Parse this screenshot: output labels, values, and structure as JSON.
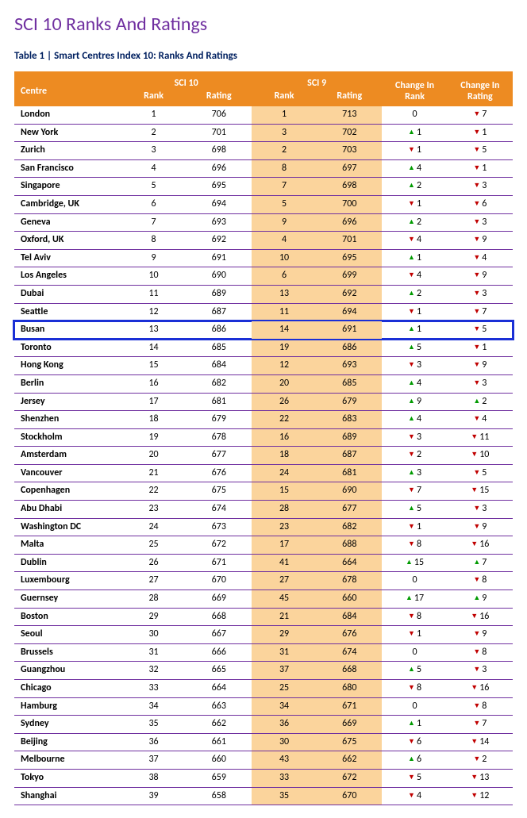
{
  "title": "SCI 10 Ranks And Ratings",
  "caption": "Table 1 | Smart Centres Index 10: Ranks And Ratings",
  "colors": {
    "heading": "#7030a0",
    "caption": "#002060",
    "header_bg": "#ed8b22",
    "header_fg": "#ffffff",
    "row_rule": "#7030a0",
    "highlight_bg": "#fbd49c",
    "box_outline": "#1a2fd6",
    "up": "#009a00",
    "down": "#c00000"
  },
  "headers": {
    "centre": "Centre",
    "sci10": "SCI 10",
    "sci9": "SCI 9",
    "rank": "Rank",
    "rating": "Rating",
    "change_rank": "Change In Rank",
    "change_rating": "Change In Rating"
  },
  "highlight_row_index": 12,
  "rows": [
    {
      "centre": "London",
      "r10": 1,
      "rt10": 706,
      "r9": 1,
      "rt9": 713,
      "d_rank": 0,
      "d_rating": -7
    },
    {
      "centre": "New York",
      "r10": 2,
      "rt10": 701,
      "r9": 3,
      "rt9": 702,
      "d_rank": 1,
      "d_rating": -1
    },
    {
      "centre": "Zurich",
      "r10": 3,
      "rt10": 698,
      "r9": 2,
      "rt9": 703,
      "d_rank": -1,
      "d_rating": -5
    },
    {
      "centre": "San Francisco",
      "r10": 4,
      "rt10": 696,
      "r9": 8,
      "rt9": 697,
      "d_rank": 4,
      "d_rating": -1
    },
    {
      "centre": "Singapore",
      "r10": 5,
      "rt10": 695,
      "r9": 7,
      "rt9": 698,
      "d_rank": 2,
      "d_rating": -3
    },
    {
      "centre": "Cambridge, UK",
      "r10": 6,
      "rt10": 694,
      "r9": 5,
      "rt9": 700,
      "d_rank": -1,
      "d_rating": -6
    },
    {
      "centre": "Geneva",
      "r10": 7,
      "rt10": 693,
      "r9": 9,
      "rt9": 696,
      "d_rank": 2,
      "d_rating": -3
    },
    {
      "centre": "Oxford, UK",
      "r10": 8,
      "rt10": 692,
      "r9": 4,
      "rt9": 701,
      "d_rank": -4,
      "d_rating": -9
    },
    {
      "centre": "Tel Aviv",
      "r10": 9,
      "rt10": 691,
      "r9": 10,
      "rt9": 695,
      "d_rank": 1,
      "d_rating": -4
    },
    {
      "centre": "Los Angeles",
      "r10": 10,
      "rt10": 690,
      "r9": 6,
      "rt9": 699,
      "d_rank": -4,
      "d_rating": -9
    },
    {
      "centre": "Dubai",
      "r10": 11,
      "rt10": 689,
      "r9": 13,
      "rt9": 692,
      "d_rank": 2,
      "d_rating": -3
    },
    {
      "centre": "Seattle",
      "r10": 12,
      "rt10": 687,
      "r9": 11,
      "rt9": 694,
      "d_rank": -1,
      "d_rating": -7
    },
    {
      "centre": "Busan",
      "r10": 13,
      "rt10": 686,
      "r9": 14,
      "rt9": 691,
      "d_rank": 1,
      "d_rating": -5
    },
    {
      "centre": "Toronto",
      "r10": 14,
      "rt10": 685,
      "r9": 19,
      "rt9": 686,
      "d_rank": 5,
      "d_rating": -1
    },
    {
      "centre": "Hong Kong",
      "r10": 15,
      "rt10": 684,
      "r9": 12,
      "rt9": 693,
      "d_rank": -3,
      "d_rating": -9
    },
    {
      "centre": "Berlin",
      "r10": 16,
      "rt10": 682,
      "r9": 20,
      "rt9": 685,
      "d_rank": 4,
      "d_rating": -3
    },
    {
      "centre": "Jersey",
      "r10": 17,
      "rt10": 681,
      "r9": 26,
      "rt9": 679,
      "d_rank": 9,
      "d_rating": 2
    },
    {
      "centre": "Shenzhen",
      "r10": 18,
      "rt10": 679,
      "r9": 22,
      "rt9": 683,
      "d_rank": 4,
      "d_rating": -4
    },
    {
      "centre": "Stockholm",
      "r10": 19,
      "rt10": 678,
      "r9": 16,
      "rt9": 689,
      "d_rank": -3,
      "d_rating": -11
    },
    {
      "centre": "Amsterdam",
      "r10": 20,
      "rt10": 677,
      "r9": 18,
      "rt9": 687,
      "d_rank": -2,
      "d_rating": -10
    },
    {
      "centre": "Vancouver",
      "r10": 21,
      "rt10": 676,
      "r9": 24,
      "rt9": 681,
      "d_rank": 3,
      "d_rating": -5
    },
    {
      "centre": "Copenhagen",
      "r10": 22,
      "rt10": 675,
      "r9": 15,
      "rt9": 690,
      "d_rank": -7,
      "d_rating": -15
    },
    {
      "centre": "Abu Dhabi",
      "r10": 23,
      "rt10": 674,
      "r9": 28,
      "rt9": 677,
      "d_rank": 5,
      "d_rating": -3
    },
    {
      "centre": "Washington DC",
      "r10": 24,
      "rt10": 673,
      "r9": 23,
      "rt9": 682,
      "d_rank": -1,
      "d_rating": -9
    },
    {
      "centre": "Malta",
      "r10": 25,
      "rt10": 672,
      "r9": 17,
      "rt9": 688,
      "d_rank": -8,
      "d_rating": -16
    },
    {
      "centre": "Dublin",
      "r10": 26,
      "rt10": 671,
      "r9": 41,
      "rt9": 664,
      "d_rank": 15,
      "d_rating": 7
    },
    {
      "centre": "Luxembourg",
      "r10": 27,
      "rt10": 670,
      "r9": 27,
      "rt9": 678,
      "d_rank": 0,
      "d_rating": -8
    },
    {
      "centre": "Guernsey",
      "r10": 28,
      "rt10": 669,
      "r9": 45,
      "rt9": 660,
      "d_rank": 17,
      "d_rating": 9
    },
    {
      "centre": "Boston",
      "r10": 29,
      "rt10": 668,
      "r9": 21,
      "rt9": 684,
      "d_rank": -8,
      "d_rating": -16
    },
    {
      "centre": "Seoul",
      "r10": 30,
      "rt10": 667,
      "r9": 29,
      "rt9": 676,
      "d_rank": -1,
      "d_rating": -9
    },
    {
      "centre": "Brussels",
      "r10": 31,
      "rt10": 666,
      "r9": 31,
      "rt9": 674,
      "d_rank": 0,
      "d_rating": -8
    },
    {
      "centre": "Guangzhou",
      "r10": 32,
      "rt10": 665,
      "r9": 37,
      "rt9": 668,
      "d_rank": 5,
      "d_rating": -3
    },
    {
      "centre": "Chicago",
      "r10": 33,
      "rt10": 664,
      "r9": 25,
      "rt9": 680,
      "d_rank": -8,
      "d_rating": -16
    },
    {
      "centre": "Hamburg",
      "r10": 34,
      "rt10": 663,
      "r9": 34,
      "rt9": 671,
      "d_rank": 0,
      "d_rating": -8
    },
    {
      "centre": "Sydney",
      "r10": 35,
      "rt10": 662,
      "r9": 36,
      "rt9": 669,
      "d_rank": 1,
      "d_rating": -7
    },
    {
      "centre": "Beijing",
      "r10": 36,
      "rt10": 661,
      "r9": 30,
      "rt9": 675,
      "d_rank": -6,
      "d_rating": -14
    },
    {
      "centre": "Melbourne",
      "r10": 37,
      "rt10": 660,
      "r9": 43,
      "rt9": 662,
      "d_rank": 6,
      "d_rating": -2
    },
    {
      "centre": "Tokyo",
      "r10": 38,
      "rt10": 659,
      "r9": 33,
      "rt9": 672,
      "d_rank": -5,
      "d_rating": -13
    },
    {
      "centre": "Shanghai",
      "r10": 39,
      "rt10": 658,
      "r9": 35,
      "rt9": 670,
      "d_rank": -4,
      "d_rating": -12
    }
  ]
}
